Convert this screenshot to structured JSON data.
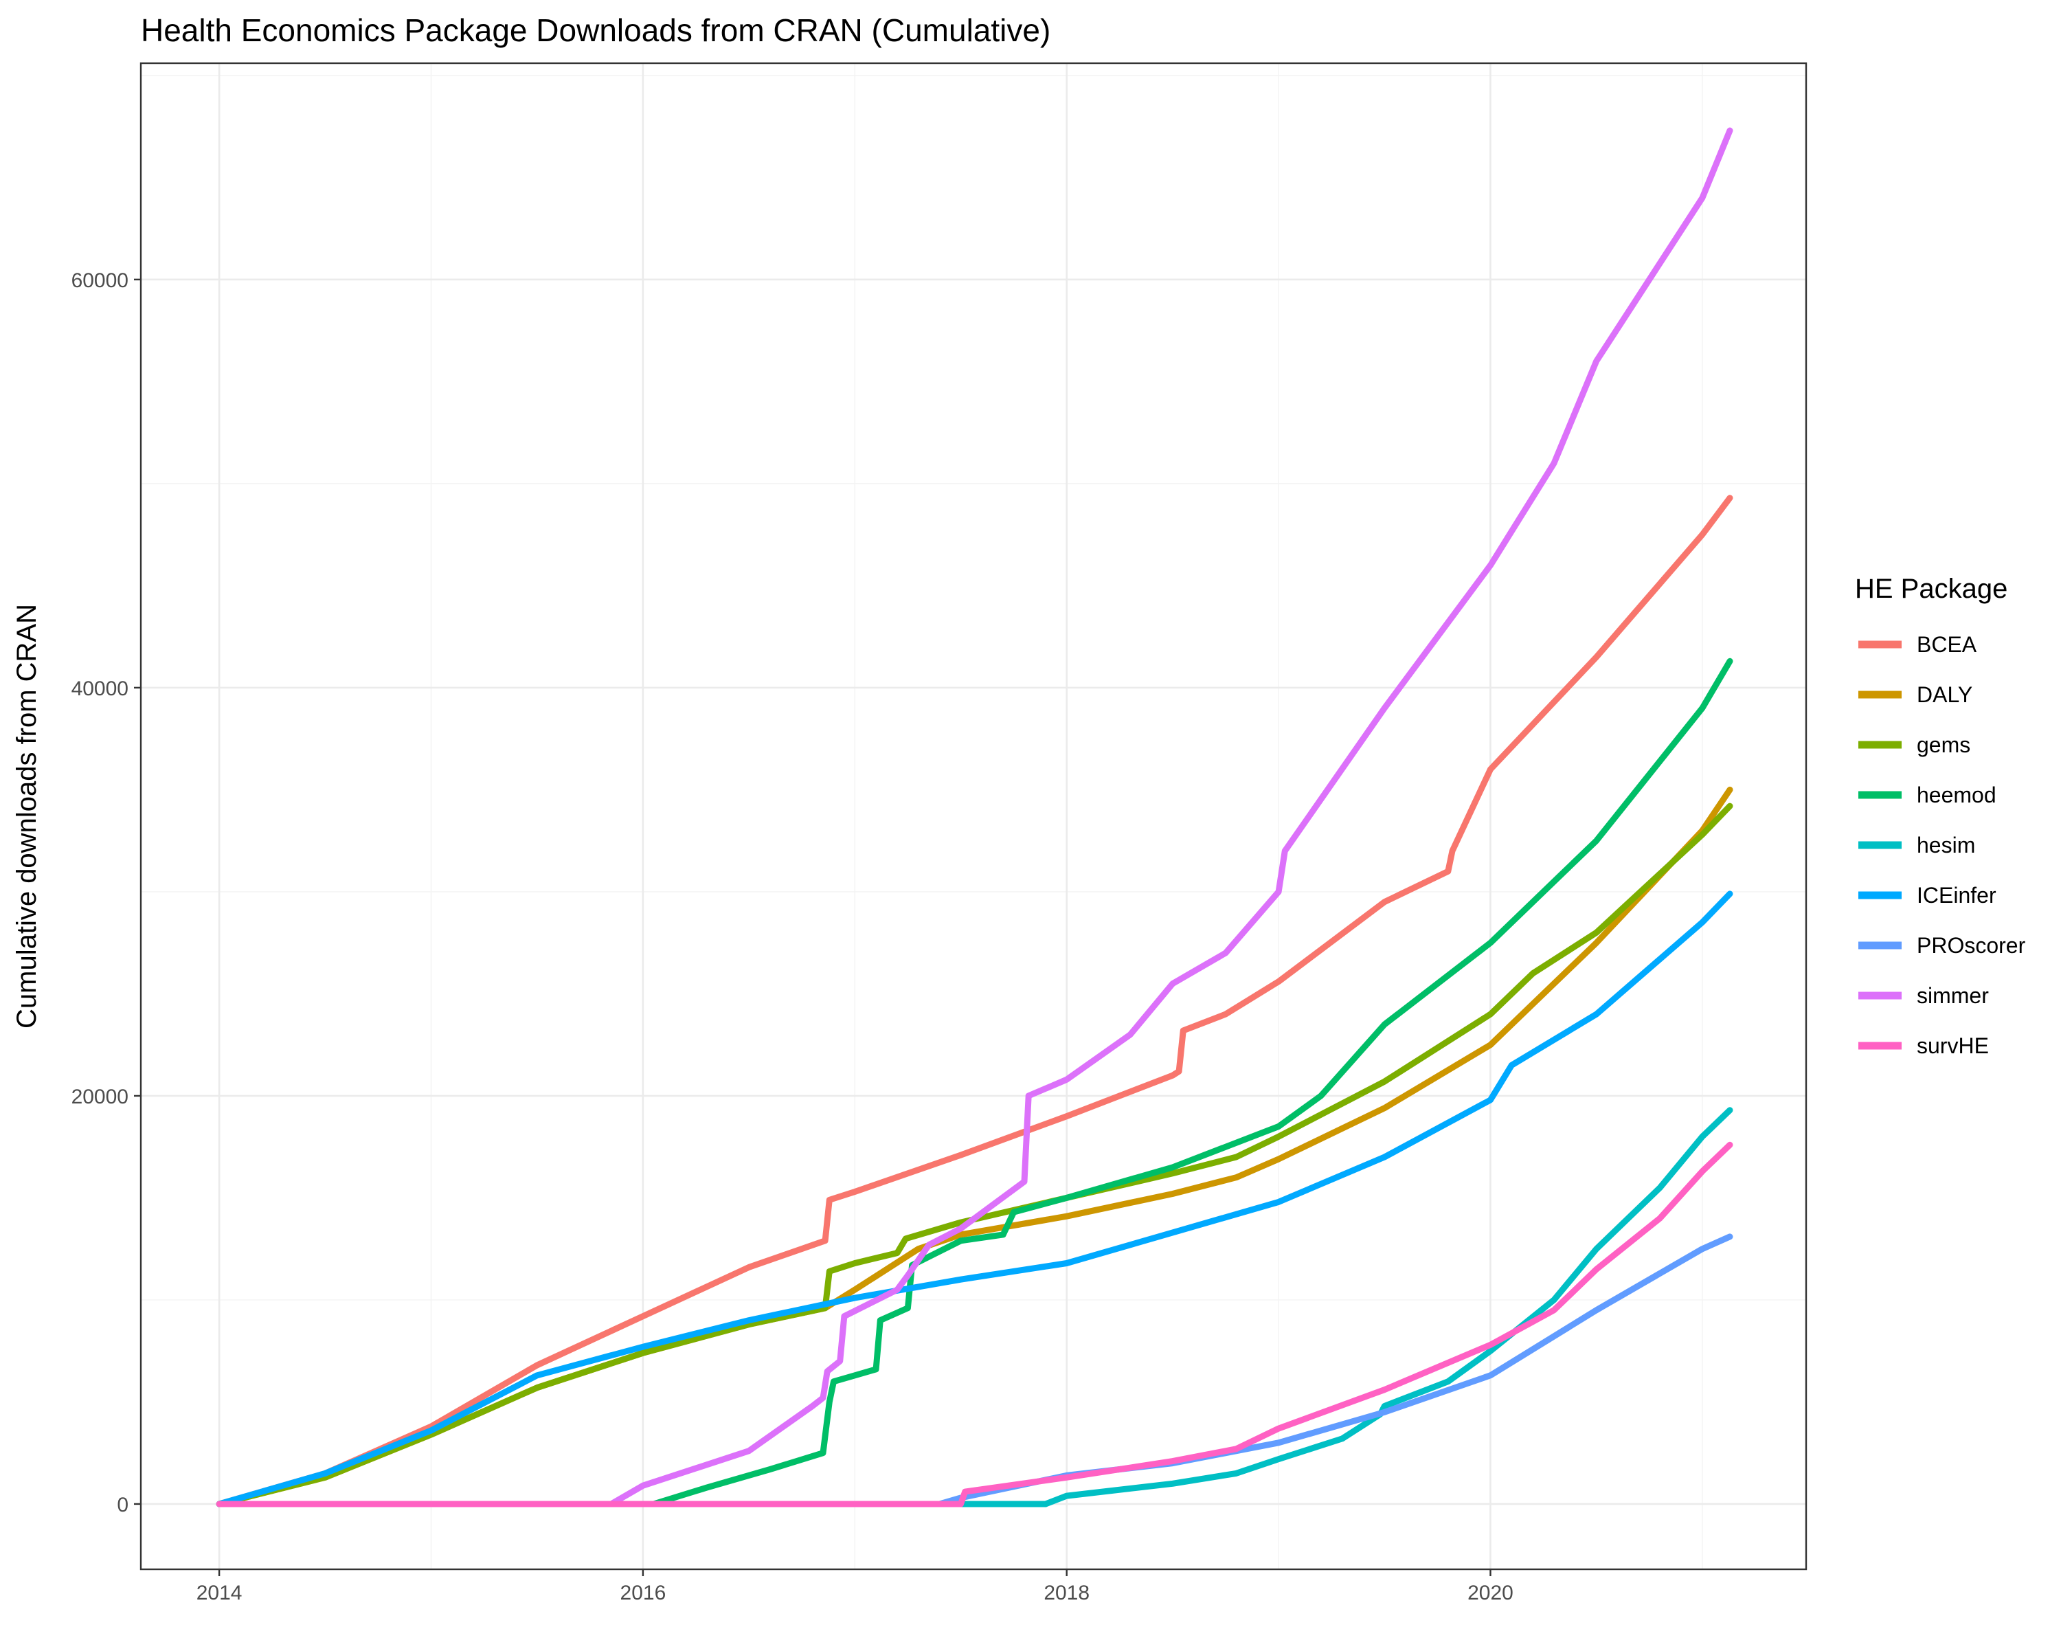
{
  "chart_data": {
    "type": "line",
    "title": "Health Economics Package Downloads from CRAN (Cumulative)",
    "xlabel": "",
    "ylabel": "Cumulative downloads from CRAN",
    "xlim": [
      2013.63,
      2021.49
    ],
    "ylim": [
      -3200,
      70600
    ],
    "x_ticks": [
      2014,
      2016,
      2018,
      2020
    ],
    "x_tick_labels": [
      "2014",
      "2016",
      "2018",
      "2020"
    ],
    "y_ticks": [
      0,
      20000,
      40000,
      60000
    ],
    "y_tick_labels": [
      "0",
      "20000",
      "40000",
      "60000"
    ],
    "grid": true,
    "legend": {
      "title": "HE Package",
      "position": "right"
    },
    "series": [
      {
        "name": "BCEA",
        "color": "#F8766D",
        "points": [
          [
            2014.0,
            0
          ],
          [
            2014.5,
            1500
          ],
          [
            2015.0,
            3800
          ],
          [
            2015.5,
            6800
          ],
          [
            2016.0,
            9200
          ],
          [
            2016.5,
            11600
          ],
          [
            2016.86,
            12900
          ],
          [
            2016.88,
            14900
          ],
          [
            2017.0,
            15300
          ],
          [
            2017.5,
            17100
          ],
          [
            2018.0,
            19000
          ],
          [
            2018.5,
            21000
          ],
          [
            2018.53,
            21200
          ],
          [
            2018.55,
            23200
          ],
          [
            2018.75,
            24000
          ],
          [
            2019.0,
            25600
          ],
          [
            2019.5,
            29500
          ],
          [
            2019.8,
            31000
          ],
          [
            2019.82,
            32000
          ],
          [
            2020.0,
            36000
          ],
          [
            2020.5,
            41500
          ],
          [
            2021.0,
            47500
          ],
          [
            2021.13,
            49300
          ]
        ]
      },
      {
        "name": "DALY",
        "color": "#CD9600",
        "points": [
          [
            2014.0,
            0
          ],
          [
            2014.5,
            1300
          ],
          [
            2015.0,
            3400
          ],
          [
            2015.5,
            5700
          ],
          [
            2016.0,
            7400
          ],
          [
            2016.5,
            8800
          ],
          [
            2016.86,
            9600
          ],
          [
            2017.0,
            10500
          ],
          [
            2017.3,
            12500
          ],
          [
            2017.5,
            13200
          ],
          [
            2018.0,
            14100
          ],
          [
            2018.5,
            15200
          ],
          [
            2018.8,
            16000
          ],
          [
            2019.0,
            16900
          ],
          [
            2019.5,
            19400
          ],
          [
            2020.0,
            22500
          ],
          [
            2020.2,
            24500
          ],
          [
            2020.5,
            27500
          ],
          [
            2021.0,
            33000
          ],
          [
            2021.13,
            35000
          ]
        ]
      },
      {
        "name": "gems",
        "color": "#7CAE00",
        "points": [
          [
            2014.0,
            0
          ],
          [
            2014.5,
            1300
          ],
          [
            2015.0,
            3400
          ],
          [
            2015.5,
            5700
          ],
          [
            2016.0,
            7400
          ],
          [
            2016.5,
            8800
          ],
          [
            2016.86,
            9600
          ],
          [
            2016.88,
            11400
          ],
          [
            2017.0,
            11800
          ],
          [
            2017.2,
            12300
          ],
          [
            2017.24,
            13000
          ],
          [
            2017.5,
            13800
          ],
          [
            2018.0,
            15000
          ],
          [
            2018.5,
            16200
          ],
          [
            2018.8,
            17000
          ],
          [
            2019.0,
            18000
          ],
          [
            2019.5,
            20700
          ],
          [
            2020.0,
            24000
          ],
          [
            2020.2,
            26000
          ],
          [
            2020.5,
            28000
          ],
          [
            2021.0,
            32800
          ],
          [
            2021.13,
            34200
          ]
        ]
      },
      {
        "name": "heemod",
        "color": "#00BE67",
        "points": [
          [
            2016.05,
            0
          ],
          [
            2016.3,
            800
          ],
          [
            2016.6,
            1700
          ],
          [
            2016.85,
            2500
          ],
          [
            2016.88,
            5000
          ],
          [
            2016.9,
            6000
          ],
          [
            2017.0,
            6300
          ],
          [
            2017.1,
            6600
          ],
          [
            2017.12,
            9000
          ],
          [
            2017.25,
            9600
          ],
          [
            2017.27,
            11700
          ],
          [
            2017.5,
            12900
          ],
          [
            2017.7,
            13200
          ],
          [
            2017.75,
            14300
          ],
          [
            2018.0,
            15000
          ],
          [
            2018.5,
            16500
          ],
          [
            2019.0,
            18500
          ],
          [
            2019.2,
            20000
          ],
          [
            2019.5,
            23500
          ],
          [
            2020.0,
            27500
          ],
          [
            2020.2,
            29500
          ],
          [
            2020.5,
            32500
          ],
          [
            2021.0,
            39000
          ],
          [
            2021.13,
            41300
          ]
        ]
      },
      {
        "name": "hesim",
        "color": "#00BFC4",
        "points": [
          [
            2017.5,
            0
          ],
          [
            2017.9,
            0
          ],
          [
            2018.0,
            400
          ],
          [
            2018.5,
            1000
          ],
          [
            2018.8,
            1500
          ],
          [
            2019.0,
            2200
          ],
          [
            2019.3,
            3200
          ],
          [
            2019.48,
            4400
          ],
          [
            2019.5,
            4800
          ],
          [
            2019.8,
            6000
          ],
          [
            2020.0,
            7500
          ],
          [
            2020.3,
            10000
          ],
          [
            2020.5,
            12500
          ],
          [
            2020.8,
            15500
          ],
          [
            2021.0,
            18000
          ],
          [
            2021.13,
            19300
          ]
        ]
      },
      {
        "name": "ICEinfer",
        "color": "#00A9FF",
        "points": [
          [
            2014.0,
            0
          ],
          [
            2014.5,
            1500
          ],
          [
            2015.0,
            3600
          ],
          [
            2015.5,
            6300
          ],
          [
            2016.0,
            7700
          ],
          [
            2016.5,
            9000
          ],
          [
            2017.0,
            10100
          ],
          [
            2017.5,
            11000
          ],
          [
            2018.0,
            11800
          ],
          [
            2018.5,
            13300
          ],
          [
            2019.0,
            14800
          ],
          [
            2019.5,
            17000
          ],
          [
            2020.0,
            19800
          ],
          [
            2020.1,
            21500
          ],
          [
            2020.5,
            24000
          ],
          [
            2021.0,
            28500
          ],
          [
            2021.13,
            29900
          ]
        ]
      },
      {
        "name": "PROscorer",
        "color": "#619CFF",
        "points": [
          [
            2017.4,
            0
          ],
          [
            2017.5,
            300
          ],
          [
            2018.0,
            1400
          ],
          [
            2018.5,
            2000
          ],
          [
            2019.0,
            3000
          ],
          [
            2019.5,
            4500
          ],
          [
            2020.0,
            6300
          ],
          [
            2020.5,
            9500
          ],
          [
            2021.0,
            12500
          ],
          [
            2021.13,
            13100
          ]
        ]
      },
      {
        "name": "simmer",
        "color": "#DC71FA",
        "points": [
          [
            2015.85,
            0
          ],
          [
            2016.0,
            900
          ],
          [
            2016.5,
            2600
          ],
          [
            2016.8,
            4800
          ],
          [
            2016.85,
            5200
          ],
          [
            2016.87,
            6500
          ],
          [
            2016.93,
            7000
          ],
          [
            2016.95,
            9200
          ],
          [
            2017.2,
            10500
          ],
          [
            2017.25,
            11200
          ],
          [
            2017.35,
            12700
          ],
          [
            2017.5,
            13500
          ],
          [
            2017.8,
            15800
          ],
          [
            2017.82,
            20000
          ],
          [
            2018.0,
            20800
          ],
          [
            2018.3,
            23000
          ],
          [
            2018.5,
            25500
          ],
          [
            2018.75,
            27000
          ],
          [
            2019.0,
            30000
          ],
          [
            2019.03,
            32000
          ],
          [
            2019.5,
            39000
          ],
          [
            2020.0,
            46000
          ],
          [
            2020.3,
            51000
          ],
          [
            2020.5,
            56000
          ],
          [
            2021.0,
            64000
          ],
          [
            2021.13,
            67300
          ]
        ]
      },
      {
        "name": "survHE",
        "color": "#FF61C3",
        "points": [
          [
            2014.0,
            0
          ],
          [
            2017.5,
            0
          ],
          [
            2017.52,
            600
          ],
          [
            2018.0,
            1300
          ],
          [
            2018.5,
            2100
          ],
          [
            2018.8,
            2700
          ],
          [
            2019.0,
            3700
          ],
          [
            2019.5,
            5600
          ],
          [
            2020.0,
            7800
          ],
          [
            2020.3,
            9500
          ],
          [
            2020.5,
            11500
          ],
          [
            2020.8,
            14000
          ],
          [
            2021.0,
            16300
          ],
          [
            2021.13,
            17600
          ]
        ]
      }
    ]
  }
}
